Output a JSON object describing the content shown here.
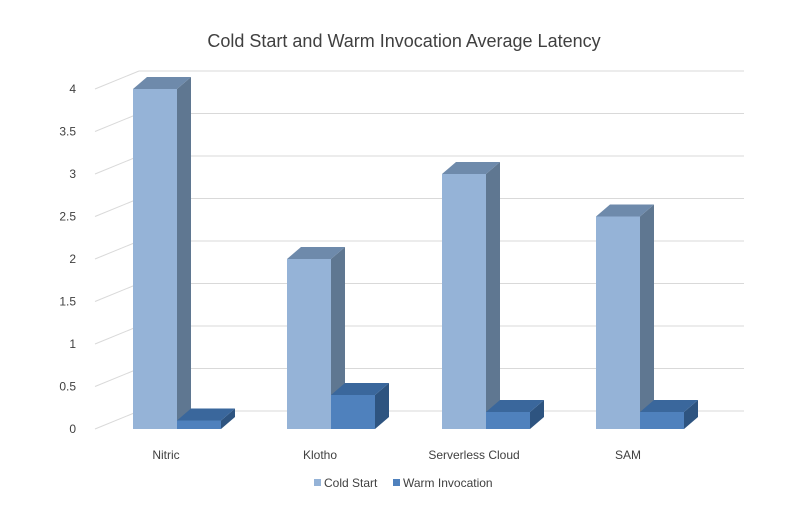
{
  "chart_data": {
    "type": "bar",
    "style": "3d-column",
    "title": "Cold Start and Warm Invocation Average Latency",
    "xlabel": "",
    "ylabel": "",
    "categories": [
      "Nitric",
      "Klotho",
      "Serverless Cloud",
      "SAM"
    ],
    "series": [
      {
        "name": "Cold Start",
        "values": [
          4,
          2,
          3,
          2.5
        ],
        "color": "#95B3D7",
        "side_color": "#5F7791",
        "top_color": "#6E8AAB"
      },
      {
        "name": "Warm Invocation",
        "values": [
          0.1,
          0.4,
          0.2,
          0.2
        ],
        "color": "#4F81BD",
        "side_color": "#2E5480",
        "top_color": "#3A679C"
      }
    ],
    "ylim": [
      0,
      4
    ],
    "yticks": [
      "0",
      "0.5",
      "1",
      "1.5",
      "2",
      "2.5",
      "3",
      "3.5",
      "4"
    ],
    "grid": true,
    "legend_position": "bottom"
  }
}
